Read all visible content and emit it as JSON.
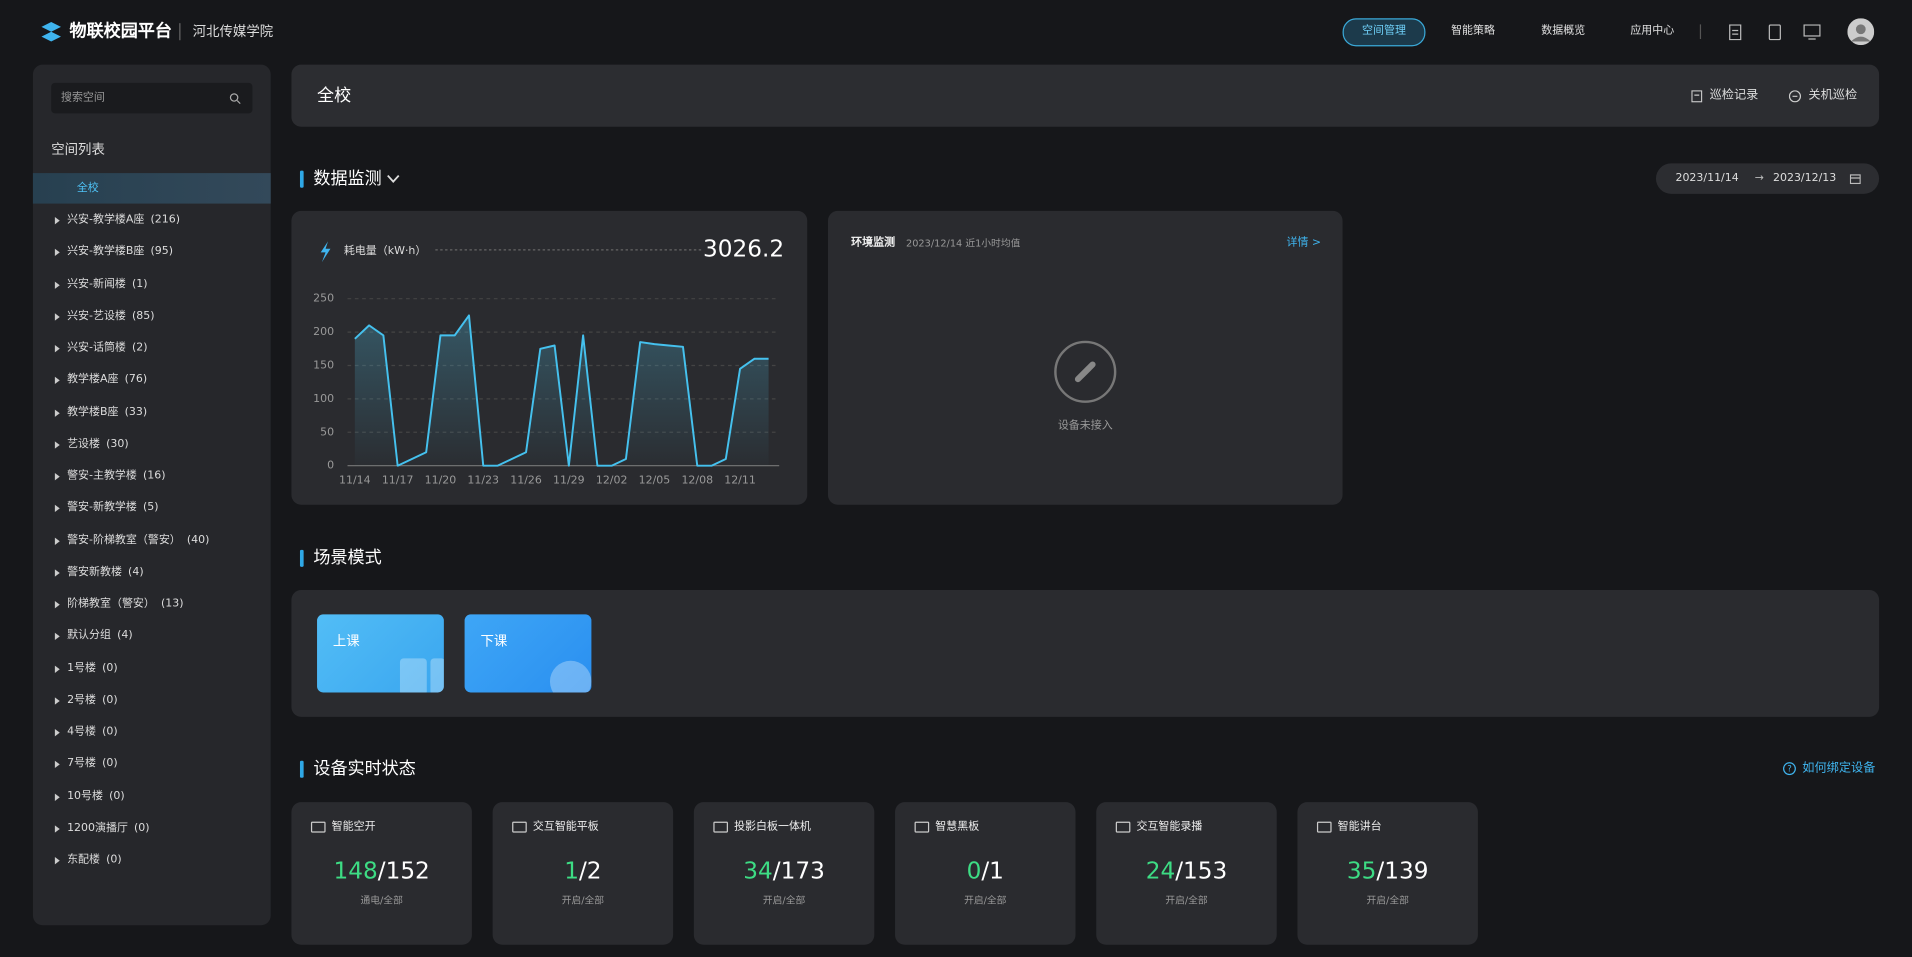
{
  "header": {
    "logo": "物联校园平台",
    "school": "河北传媒学院",
    "nav": [
      "空间管理",
      "智能策略",
      "数据概览",
      "应用中心"
    ]
  },
  "sidebar": {
    "search_placeholder": "搜索空间",
    "title": "空间列表",
    "active": "全校",
    "items": [
      {
        "name": "兴安-教学楼A座",
        "count": "(216)"
      },
      {
        "name": "兴安-教学楼B座",
        "count": "(95)"
      },
      {
        "name": "兴安-新闻楼",
        "count": "(1)"
      },
      {
        "name": "兴安-艺设楼",
        "count": "(85)"
      },
      {
        "name": "兴安-话筒楼",
        "count": "(2)"
      },
      {
        "name": "教学楼A座",
        "count": "(76)"
      },
      {
        "name": "教学楼B座",
        "count": "(33)"
      },
      {
        "name": "艺设楼",
        "count": "(30)"
      },
      {
        "name": "警安-主教学楼",
        "count": "(16)"
      },
      {
        "name": "警安-新教学楼",
        "count": "(5)"
      },
      {
        "name": "警安-阶梯教室（警安）",
        "count": "(40)"
      },
      {
        "name": "警安新教楼",
        "count": "(4)"
      },
      {
        "name": "阶梯教室（警安）",
        "count": "(13)"
      },
      {
        "name": "默认分组",
        "count": "(4)"
      },
      {
        "name": "1号楼",
        "count": "(0)"
      },
      {
        "name": "2号楼",
        "count": "(0)"
      },
      {
        "name": "4号楼",
        "count": "(0)"
      },
      {
        "name": "7号楼",
        "count": "(0)"
      },
      {
        "name": "10号楼",
        "count": "(0)"
      },
      {
        "name": "1200演播厅",
        "count": "(0)"
      },
      {
        "name": "东配楼",
        "count": "(0)"
      }
    ]
  },
  "main": {
    "title": "全校",
    "actions": [
      "巡检记录",
      "关机巡检"
    ]
  },
  "monitor": {
    "title": "数据监测",
    "date_start": "2023/11/14",
    "date_sep": "→",
    "date_end": "2023/12/13"
  },
  "chart_data": {
    "type": "line",
    "total_label": "耗电量（kW·h）",
    "total": 3026.2,
    "categories": [
      "11/14",
      null,
      null,
      "11/17",
      null,
      null,
      "11/20",
      null,
      null,
      "11/23",
      null,
      null,
      "11/26",
      null,
      null,
      "11/29",
      null,
      null,
      "12/02",
      null,
      null,
      "12/05",
      null,
      null,
      "12/08",
      null,
      null,
      "12/11",
      null,
      null
    ],
    "series": [
      {
        "color": "#45c1ee",
        "values": [
          190,
          210,
          195,
          0,
          10,
          20,
          195,
          195,
          225,
          0,
          0,
          10,
          20,
          175,
          180,
          0,
          195,
          0,
          0,
          10,
          185,
          182,
          180,
          178,
          0,
          0,
          10,
          145,
          160,
          160
        ]
      }
    ],
    "ylim": [
      0,
      250
    ],
    "yticks": [
      0,
      50,
      100,
      150,
      200,
      250
    ],
    "grid": true
  },
  "environment": {
    "title": "环境监测",
    "subtitle": "2023/12/14 近1小时均值",
    "link": "详情 >",
    "empty": "设备未接入"
  },
  "scenes": {
    "title": "场景模式",
    "items": [
      "上课",
      "下课"
    ]
  },
  "devices": {
    "title": "设备实时状态",
    "help": "如何绑定设备",
    "separator": "/",
    "items": [
      {
        "name": "智能空开",
        "on": 148,
        "total": 152,
        "caption": "通电/全部"
      },
      {
        "name": "交互智能平板",
        "on": 1,
        "total": 2,
        "caption": "开启/全部"
      },
      {
        "name": "投影白板一体机",
        "on": 34,
        "total": 173,
        "caption": "开启/全部"
      },
      {
        "name": "智慧黑板",
        "on": 0,
        "total": 1,
        "caption": "开启/全部"
      },
      {
        "name": "交互智能录播",
        "on": 24,
        "total": 153,
        "caption": "开启/全部"
      },
      {
        "name": "智能讲台",
        "on": 35,
        "total": 139,
        "caption": "开启/全部"
      }
    ]
  }
}
